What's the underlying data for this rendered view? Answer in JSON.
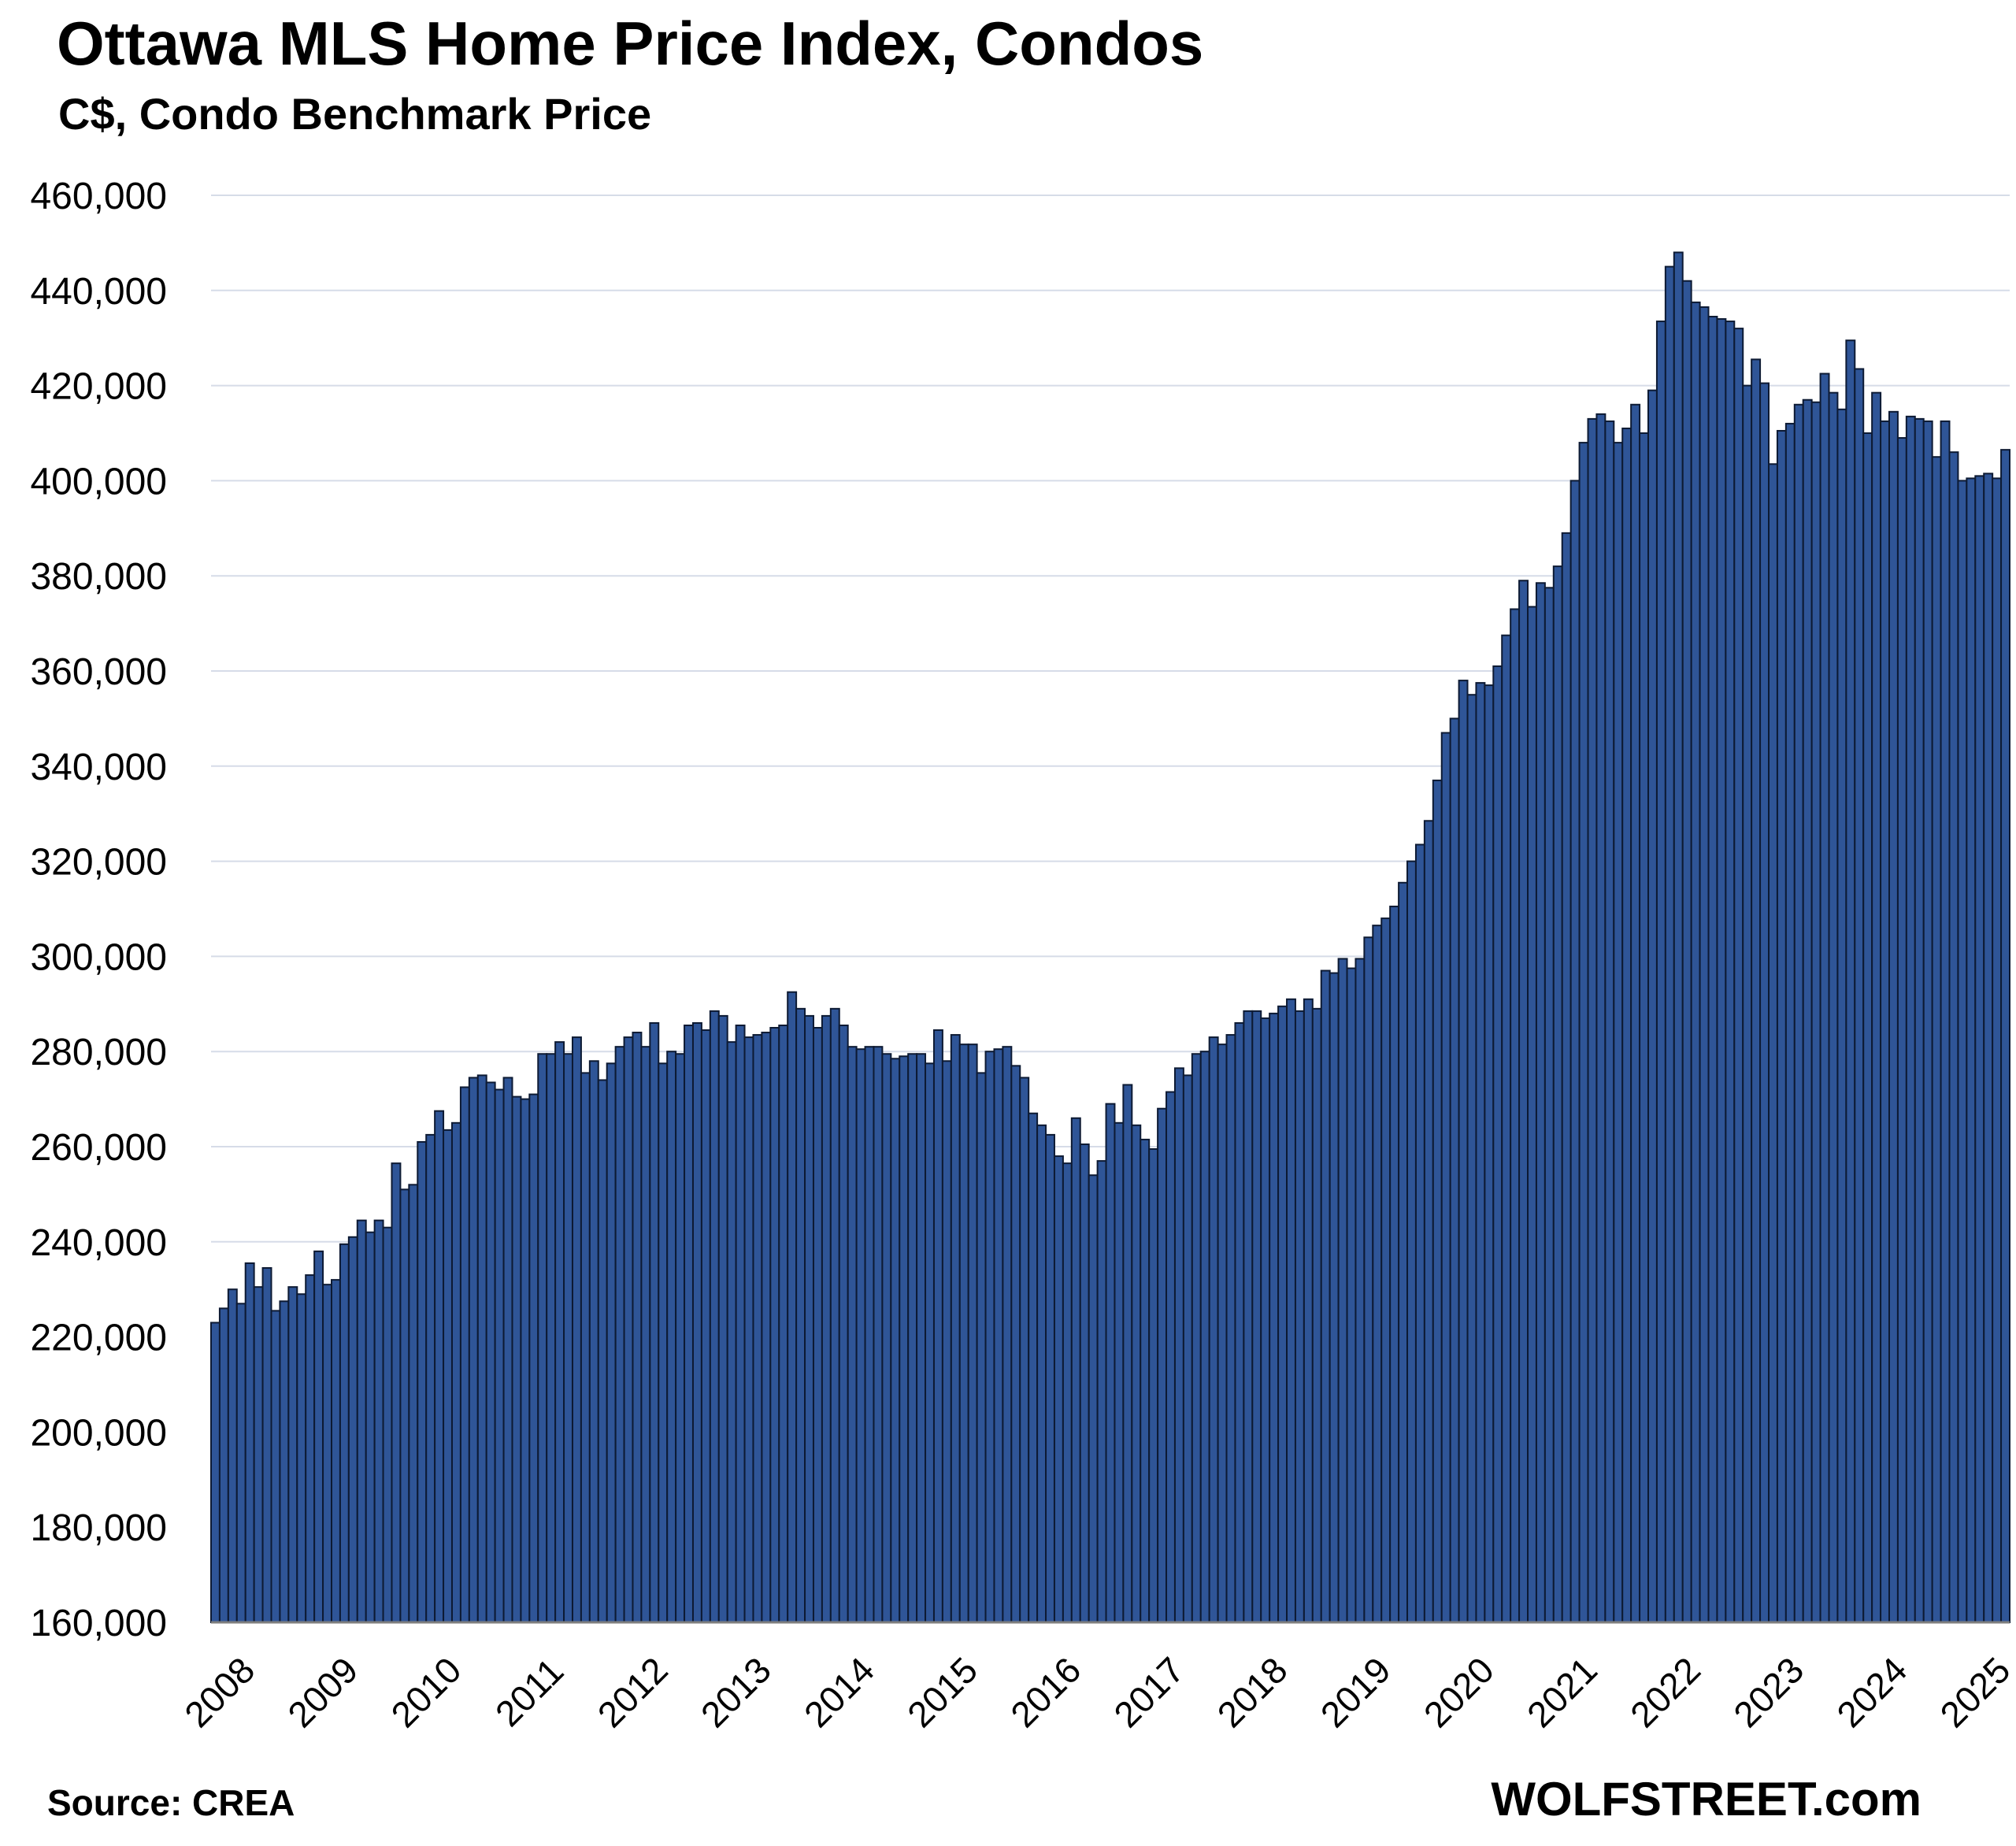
{
  "title": "Ottawa MLS Home Price Index, Condos",
  "subtitle": "C$, Condo Benchmark Price",
  "source": "Source: CREA",
  "brand": "WOLFSTREET.com",
  "colors": {
    "bar_fill": "#2F5597",
    "bar_edge": "#0d1a33",
    "grid": "#d6dce8",
    "axis": "#7f7f7f"
  },
  "chart_data": {
    "type": "bar",
    "ylim": [
      160000,
      460000
    ],
    "y_ticks": [
      "160,000",
      "180,000",
      "200,000",
      "220,000",
      "240,000",
      "260,000",
      "280,000",
      "300,000",
      "320,000",
      "340,000",
      "360,000",
      "380,000",
      "400,000",
      "420,000",
      "440,000",
      "460,000"
    ],
    "x_ticks": [
      "2008",
      "2009",
      "2010",
      "2011",
      "2012",
      "2013",
      "2014",
      "2015",
      "2016",
      "2017",
      "2018",
      "2019",
      "2020",
      "2021",
      "2022",
      "2023",
      "2024",
      "2025"
    ],
    "grid": true,
    "legend": "none",
    "start": "2008-01",
    "frequency": "monthly",
    "values": [
      223000,
      226000,
      230000,
      227000,
      235500,
      230500,
      234500,
      225500,
      227500,
      230500,
      229000,
      233000,
      238000,
      231000,
      232000,
      239500,
      241000,
      244500,
      242000,
      244500,
      243000,
      256500,
      251000,
      252000,
      261000,
      262500,
      267500,
      263500,
      265000,
      272500,
      274500,
      275000,
      273500,
      272000,
      274500,
      270500,
      270000,
      271000,
      279500,
      279500,
      282000,
      279500,
      283000,
      275500,
      278000,
      274000,
      277500,
      281000,
      283000,
      284000,
      281000,
      286000,
      277500,
      280000,
      279500,
      285500,
      286000,
      284500,
      288500,
      287500,
      282000,
      285500,
      283000,
      283500,
      284000,
      285000,
      285500,
      292500,
      289000,
      287500,
      285000,
      287500,
      289000,
      285500,
      281000,
      280500,
      281000,
      281000,
      279500,
      278500,
      279000,
      279500,
      279500,
      277500,
      284500,
      278000,
      283500,
      281500,
      281500,
      275500,
      280000,
      280500,
      281000,
      277000,
      274500,
      267000,
      264500,
      262500,
      258000,
      256500,
      266000,
      260500,
      254000,
      257000,
      269000,
      265000,
      273000,
      264500,
      261500,
      259500,
      268000,
      271500,
      276500,
      275000,
      279500,
      280000,
      283000,
      281500,
      283500,
      286000,
      288500,
      288500,
      287000,
      288000,
      289500,
      291000,
      288500,
      291000,
      289000,
      297000,
      296500,
      299500,
      297500,
      299500,
      304000,
      306500,
      308000,
      310500,
      315500,
      320000,
      323500,
      328500,
      337000,
      347000,
      350000,
      358000,
      355000,
      357500,
      357000,
      361000,
      367500,
      373000,
      379000,
      373500,
      378500,
      377500,
      382000,
      389000,
      400000,
      408000,
      413000,
      414000,
      412500,
      408000,
      411000,
      416000,
      410000,
      419000,
      433500,
      445000,
      448000,
      442000,
      437500,
      436500,
      434500,
      434000,
      433500,
      432000,
      420000,
      425500,
      420500,
      403500,
      410500,
      412000,
      416000,
      417000,
      416500,
      422500,
      418500,
      415000,
      429500,
      423500,
      410000,
      418500,
      412500,
      414500,
      409000,
      413500,
      413000,
      412500,
      405000,
      412500,
      406000,
      400000,
      400500,
      401000,
      401500,
      400500,
      406500
    ]
  }
}
